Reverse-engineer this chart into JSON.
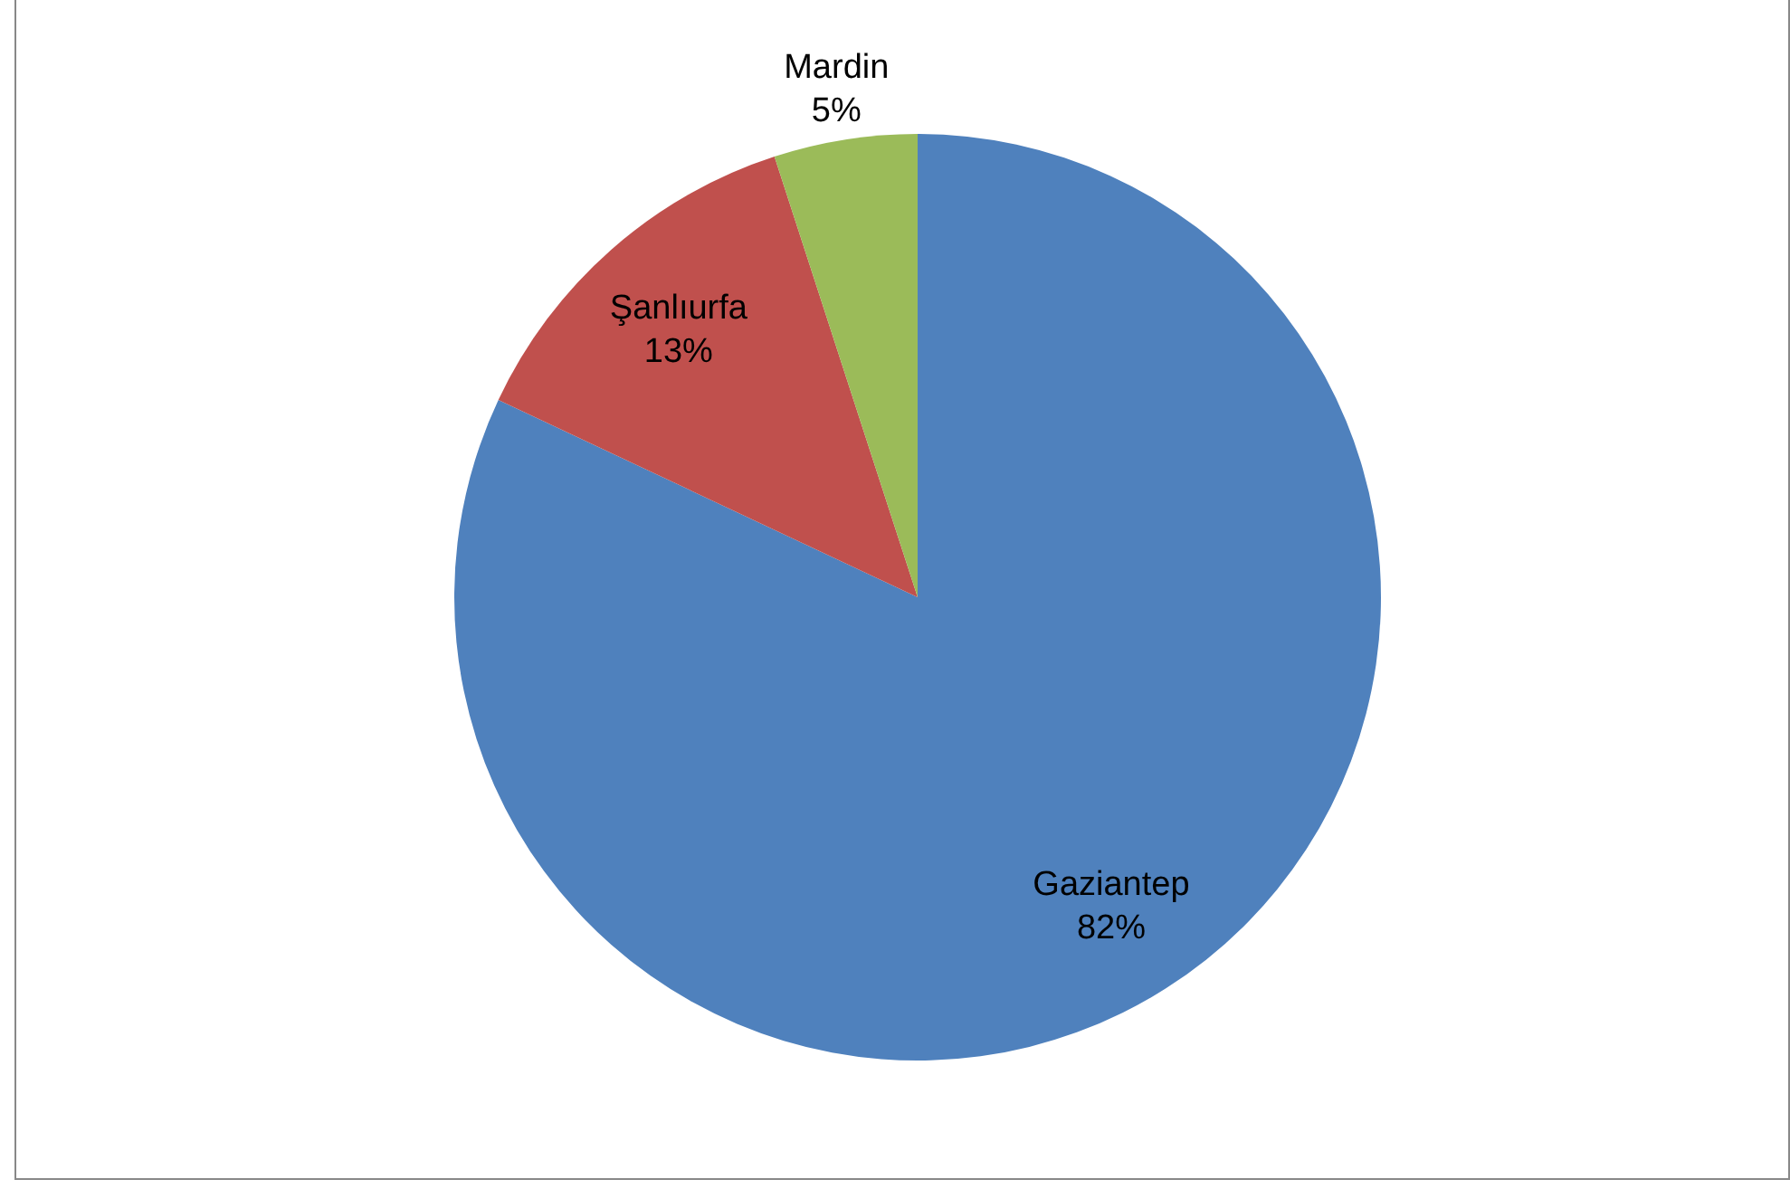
{
  "chart_data": {
    "type": "pie",
    "categories": [
      "Gaziantep",
      "Şanlıurfa",
      "Mardin"
    ],
    "values": [
      82,
      13,
      5
    ],
    "colors": [
      "#4f81bd",
      "#c0504d",
      "#9bbb59"
    ],
    "value_labels": [
      "82%",
      "13%",
      "5%"
    ],
    "legend": false
  }
}
